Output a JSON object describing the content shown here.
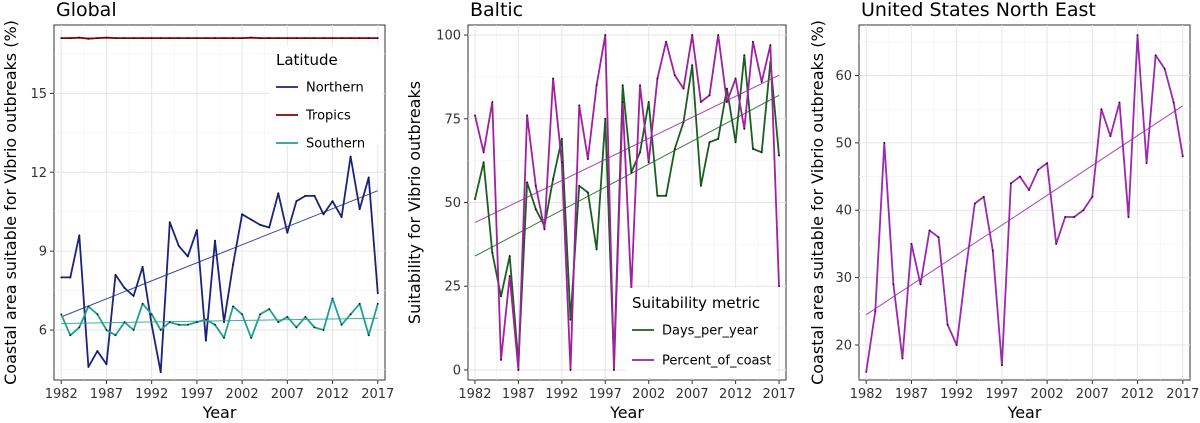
{
  "chart_data": [
    {
      "type": "line",
      "title": "Global",
      "xlabel": "Year",
      "ylabel": "Coastal area suitable for Vibrio outbreaks (%)",
      "xlim": [
        1981.2,
        2017.8
      ],
      "ylim": [
        4.1,
        17.6
      ],
      "xticks": [
        1982,
        1987,
        1992,
        1997,
        2002,
        2007,
        2012,
        2017
      ],
      "yticks": [
        6,
        9,
        12,
        15
      ],
      "legend": {
        "title": "Latitude",
        "position": "top-right",
        "entries": [
          "Northern",
          "Tropics",
          "Southern"
        ]
      },
      "x": [
        1982,
        1983,
        1984,
        1985,
        1986,
        1987,
        1988,
        1989,
        1990,
        1991,
        1992,
        1993,
        1994,
        1995,
        1996,
        1997,
        1998,
        1999,
        2000,
        2001,
        2002,
        2003,
        2004,
        2005,
        2006,
        2007,
        2008,
        2009,
        2010,
        2011,
        2012,
        2013,
        2014,
        2015,
        2016,
        2017
      ],
      "series": [
        {
          "name": "Northern",
          "color": "#1a237e",
          "values": [
            8.0,
            8.0,
            9.6,
            4.6,
            5.2,
            4.7,
            8.1,
            7.6,
            7.3,
            8.4,
            6.2,
            4.4,
            10.1,
            9.2,
            8.8,
            9.8,
            5.6,
            9.4,
            6.3,
            8.5,
            10.4,
            10.2,
            10.0,
            9.9,
            11.2,
            9.7,
            10.9,
            11.1,
            11.1,
            10.4,
            10.9,
            10.3,
            12.6,
            10.6,
            11.8,
            7.4
          ],
          "trend": [
            6.5,
            11.3
          ]
        },
        {
          "name": "Tropics",
          "color": "#8b0000",
          "values": [
            17.1,
            17.1,
            17.12,
            17.08,
            17.1,
            17.12,
            17.1,
            17.1,
            17.1,
            17.1,
            17.1,
            17.1,
            17.1,
            17.1,
            17.1,
            17.1,
            17.1,
            17.1,
            17.1,
            17.1,
            17.1,
            17.12,
            17.1,
            17.1,
            17.1,
            17.1,
            17.1,
            17.1,
            17.1,
            17.1,
            17.1,
            17.1,
            17.1,
            17.1,
            17.1,
            17.1
          ],
          "trend": [
            17.1,
            17.1
          ]
        },
        {
          "name": "Southern",
          "color": "#20a090",
          "values": [
            6.6,
            5.8,
            6.1,
            6.9,
            6.6,
            6.0,
            5.8,
            6.3,
            6.0,
            7.0,
            6.6,
            6.0,
            6.3,
            6.2,
            6.2,
            6.3,
            6.4,
            6.2,
            5.7,
            6.9,
            6.6,
            5.7,
            6.6,
            6.8,
            6.3,
            6.5,
            6.1,
            6.5,
            6.1,
            6.0,
            7.2,
            6.2,
            6.6,
            7.0,
            5.8,
            7.0
          ],
          "trend": [
            6.25,
            6.45
          ]
        }
      ]
    },
    {
      "type": "line",
      "title": "Baltic",
      "xlabel": "Year",
      "ylabel": "Suitability for Vibrio outbreaks",
      "xlim": [
        1981.2,
        2017.8
      ],
      "ylim": [
        -3,
        103
      ],
      "xticks": [
        1982,
        1987,
        1992,
        1997,
        2002,
        2007,
        2012,
        2017
      ],
      "yticks": [
        0,
        25,
        50,
        75,
        100
      ],
      "legend": {
        "title": "Suitability metric",
        "position": "bottom-right",
        "entries": [
          "Days_per_year",
          "Percent_of_coast"
        ]
      },
      "x": [
        1982,
        1983,
        1984,
        1985,
        1986,
        1987,
        1988,
        1989,
        1990,
        1991,
        1992,
        1993,
        1994,
        1995,
        1996,
        1997,
        1998,
        1999,
        2000,
        2001,
        2002,
        2003,
        2004,
        2005,
        2006,
        2007,
        2008,
        2009,
        2010,
        2011,
        2012,
        2013,
        2014,
        2015,
        2016,
        2017
      ],
      "series": [
        {
          "name": "Days_per_year",
          "color": "#1b5e20",
          "values": [
            51,
            62,
            35,
            22,
            34,
            2,
            56,
            48,
            43,
            57,
            69,
            15,
            55,
            53,
            36,
            75,
            2,
            85,
            59,
            65,
            80,
            52,
            52,
            66,
            74,
            91,
            55,
            68,
            69,
            84,
            68,
            94,
            66,
            65,
            92,
            64
          ],
          "trend": [
            34,
            82
          ]
        },
        {
          "name": "Percent_of_coast",
          "color": "#a020a0",
          "values": [
            76,
            65,
            80,
            3,
            28,
            0,
            76,
            55,
            42,
            87,
            62,
            0,
            79,
            63,
            85,
            100,
            0,
            80,
            24,
            85,
            62,
            87,
            98,
            88,
            84,
            100,
            80,
            82,
            100,
            80,
            87,
            72,
            98,
            86,
            97,
            25
          ],
          "trend": [
            44,
            88
          ]
        }
      ]
    },
    {
      "type": "line",
      "title": "United States North East",
      "xlabel": "Year",
      "ylabel": "Coastal area suitable for Vibrio outbreaks (%)",
      "xlim": [
        1981.2,
        2017.8
      ],
      "ylim": [
        14.8,
        67.5
      ],
      "xticks": [
        1982,
        1987,
        1992,
        1997,
        2002,
        2007,
        2012,
        2017
      ],
      "yticks": [
        20,
        30,
        40,
        50,
        60
      ],
      "x": [
        1982,
        1983,
        1984,
        1985,
        1986,
        1987,
        1988,
        1989,
        1990,
        1991,
        1992,
        1993,
        1994,
        1995,
        1996,
        1997,
        1998,
        1999,
        2000,
        2001,
        2002,
        2003,
        2004,
        2005,
        2006,
        2007,
        2008,
        2009,
        2010,
        2011,
        2012,
        2013,
        2014,
        2015,
        2016,
        2017
      ],
      "series": [
        {
          "name": "",
          "color": "#9c27b0",
          "values": [
            16,
            25,
            50,
            29,
            18,
            35,
            29,
            37,
            36,
            23,
            20,
            31,
            41,
            42,
            34,
            17,
            44,
            45,
            43,
            46,
            47,
            35,
            39,
            39,
            40,
            42,
            55,
            51,
            56,
            39,
            66,
            47,
            63,
            61,
            56,
            48
          ],
          "trend": [
            24.5,
            55.5
          ]
        }
      ]
    }
  ]
}
